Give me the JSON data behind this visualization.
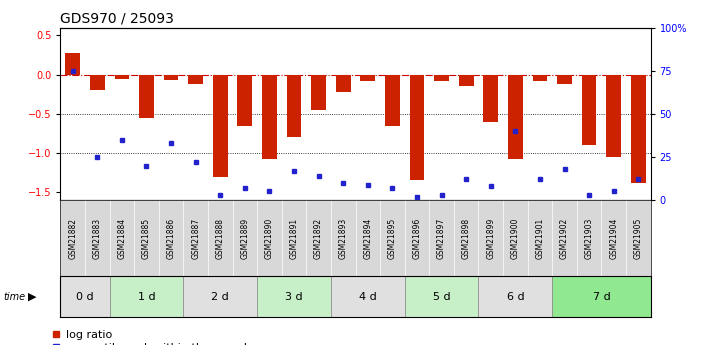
{
  "title": "GDS970 / 25093",
  "samples": [
    "GSM21882",
    "GSM21883",
    "GSM21884",
    "GSM21885",
    "GSM21886",
    "GSM21887",
    "GSM21888",
    "GSM21889",
    "GSM21890",
    "GSM21891",
    "GSM21892",
    "GSM21893",
    "GSM21894",
    "GSM21895",
    "GSM21896",
    "GSM21897",
    "GSM21898",
    "GSM21899",
    "GSM21900",
    "GSM21901",
    "GSM21902",
    "GSM21903",
    "GSM21904",
    "GSM21905"
  ],
  "log_ratio": [
    0.28,
    -0.2,
    -0.05,
    -0.55,
    -0.07,
    -0.12,
    -1.3,
    -0.65,
    -1.08,
    -0.8,
    -0.45,
    -0.22,
    -0.08,
    -0.65,
    -1.35,
    -0.08,
    -0.15,
    -0.6,
    -1.08,
    -0.08,
    -0.12,
    -0.9,
    -1.05,
    -1.38
  ],
  "percentile_vals": [
    75,
    25,
    35,
    20,
    33,
    22,
    3,
    7,
    5,
    17,
    14,
    10,
    9,
    7,
    2,
    3,
    12,
    8,
    40,
    12,
    18,
    3,
    5,
    12
  ],
  "groups": [
    {
      "label": "0 d",
      "start": 0,
      "end": 2,
      "color": "#e0e0e0"
    },
    {
      "label": "1 d",
      "start": 2,
      "end": 5,
      "color": "#c8f0c8"
    },
    {
      "label": "2 d",
      "start": 5,
      "end": 8,
      "color": "#e0e0e0"
    },
    {
      "label": "3 d",
      "start": 8,
      "end": 11,
      "color": "#c8f0c8"
    },
    {
      "label": "4 d",
      "start": 11,
      "end": 14,
      "color": "#e0e0e0"
    },
    {
      "label": "5 d",
      "start": 14,
      "end": 17,
      "color": "#c8f0c8"
    },
    {
      "label": "6 d",
      "start": 17,
      "end": 20,
      "color": "#e0e0e0"
    },
    {
      "label": "7 d",
      "start": 20,
      "end": 24,
      "color": "#90e890"
    }
  ],
  "bar_color": "#cc2200",
  "dot_color": "#2222cc",
  "dashed_color": "#cc0000",
  "ylim_left": [
    -1.6,
    0.6
  ],
  "ylim_right": [
    0,
    100
  ],
  "yticks_left": [
    -1.5,
    -1.0,
    -0.5,
    0.0,
    0.5
  ],
  "yticks_right": [
    0,
    25,
    50,
    75,
    100
  ],
  "hlines": [
    -0.5,
    -1.0
  ],
  "background_color": "#ffffff",
  "title_fontsize": 10,
  "tick_fontsize": 7,
  "label_fontsize": 5.5,
  "group_fontsize": 8,
  "legend_fontsize": 8,
  "bar_width": 0.6
}
